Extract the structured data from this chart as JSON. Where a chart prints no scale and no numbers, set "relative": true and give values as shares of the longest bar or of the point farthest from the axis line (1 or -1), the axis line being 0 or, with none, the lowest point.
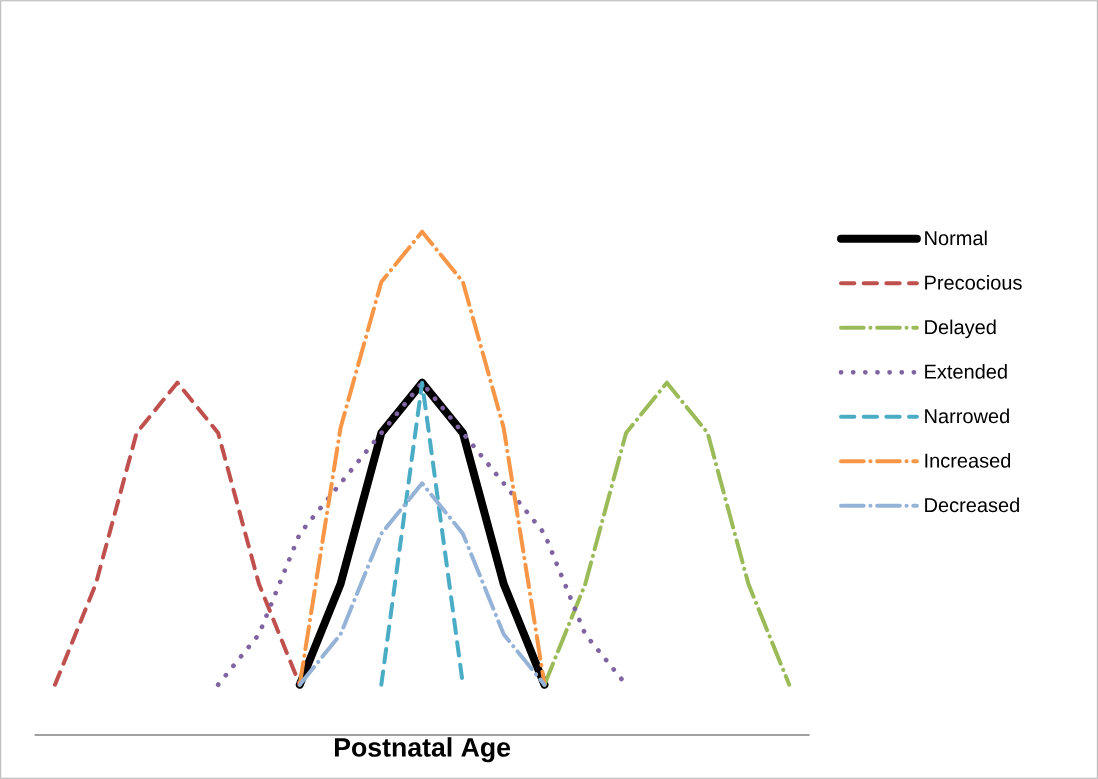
{
  "chart_data": {
    "type": "line",
    "relative": true,
    "xlabel": "Postnatal Age",
    "legend": "right",
    "categories": [
      null,
      null,
      null,
      null,
      null,
      null,
      null,
      null,
      null,
      null,
      null,
      null,
      null,
      null,
      null,
      null,
      null,
      null,
      null
    ],
    "series": [
      {
        "name": "Normal",
        "color": "#000000",
        "line_style": "solid",
        "values": [
          null,
          null,
          null,
          null,
          null,
          null,
          0.1,
          0.3,
          0.6,
          0.7,
          0.6,
          0.3,
          0.1,
          null,
          null,
          null,
          null,
          null,
          null
        ]
      },
      {
        "name": "Precocious",
        "color": "#c0504d",
        "line_style": "dashed",
        "values": [
          0.1,
          0.3,
          0.6,
          0.7,
          0.6,
          0.3,
          0.1,
          null,
          null,
          null,
          null,
          null,
          null,
          null,
          null,
          null,
          null,
          null,
          null
        ]
      },
      {
        "name": "Delayed",
        "color": "#9bbb59",
        "line_style": "dashdot",
        "values": [
          null,
          null,
          null,
          null,
          null,
          null,
          null,
          null,
          null,
          null,
          null,
          null,
          0.1,
          0.3,
          0.6,
          0.7,
          0.6,
          0.3,
          0.1
        ]
      },
      {
        "name": "Extended",
        "color": "#8064a2",
        "line_style": "dotted",
        "values": [
          null,
          null,
          null,
          null,
          0.1,
          0.2,
          0.4,
          0.5,
          0.6,
          0.7,
          0.6,
          0.5,
          0.4,
          0.2,
          0.1,
          null,
          null,
          null,
          null
        ]
      },
      {
        "name": "Narrowed",
        "color": "#4bacc6",
        "line_style": "dashed",
        "values": [
          null,
          null,
          null,
          null,
          null,
          null,
          null,
          null,
          0.1,
          0.7,
          0.1,
          null,
          null,
          null,
          null,
          null,
          null,
          null,
          null
        ]
      },
      {
        "name": "Increased",
        "color": "#f79646",
        "line_style": "dashdot",
        "values": [
          null,
          null,
          null,
          null,
          null,
          null,
          0.1,
          0.61,
          0.9,
          1.0,
          0.9,
          0.61,
          0.1,
          null,
          null,
          null,
          null,
          null,
          null
        ]
      },
      {
        "name": "Decreased",
        "color": "#95b3d7",
        "line_style": "dashdot",
        "values": [
          null,
          null,
          null,
          null,
          null,
          null,
          0.1,
          0.2,
          0.4,
          0.5,
          0.4,
          0.2,
          0.1,
          null,
          null,
          null,
          null,
          null,
          null
        ]
      }
    ]
  }
}
